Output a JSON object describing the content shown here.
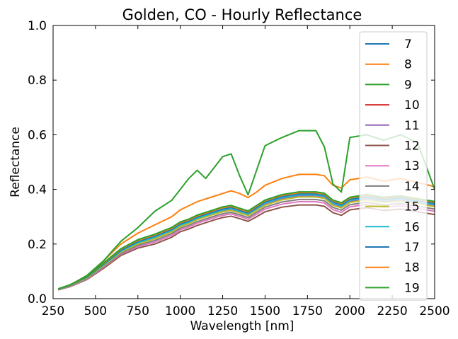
{
  "chart_data": {
    "type": "line",
    "title": "Golden, CO - Hourly Reflectance",
    "xlabel": "Wavelength [nm]",
    "ylabel": "Reflectance",
    "xlim": [
      250,
      2500
    ],
    "ylim": [
      0.0,
      1.0
    ],
    "xticks": [
      250,
      500,
      750,
      1000,
      1250,
      1500,
      1750,
      2000,
      2250,
      2500
    ],
    "yticks": [
      0.0,
      0.2,
      0.4,
      0.6,
      0.8,
      1.0
    ],
    "xtick_labels": [
      "250",
      "500",
      "750",
      "1000",
      "1250",
      "1500",
      "1750",
      "2000",
      "2250",
      "2500"
    ],
    "ytick_labels": [
      "0.0",
      "0.2",
      "0.4",
      "0.6",
      "0.8",
      "1.0"
    ],
    "grid": false,
    "legend_position": "top-right",
    "x": [
      280,
      350,
      450,
      550,
      650,
      750,
      850,
      950,
      1000,
      1050,
      1100,
      1150,
      1200,
      1250,
      1300,
      1350,
      1400,
      1450,
      1500,
      1600,
      1700,
      1800,
      1850,
      1900,
      1950,
      2000,
      2100,
      2200,
      2300,
      2400,
      2500
    ],
    "series": [
      {
        "name": "7",
        "color": "#1f77b4",
        "values": [
          0.035,
          0.05,
          0.08,
          0.13,
          0.18,
          0.215,
          0.235,
          0.26,
          0.28,
          0.29,
          0.305,
          0.315,
          0.325,
          0.335,
          0.34,
          0.33,
          0.32,
          0.34,
          0.36,
          0.38,
          0.39,
          0.39,
          0.385,
          0.36,
          0.35,
          0.37,
          0.38,
          0.37,
          0.375,
          0.365,
          0.355
        ]
      },
      {
        "name": "8",
        "color": "#ff7f0e",
        "values": [
          0.035,
          0.05,
          0.085,
          0.14,
          0.2,
          0.24,
          0.27,
          0.3,
          0.325,
          0.34,
          0.355,
          0.365,
          0.375,
          0.385,
          0.395,
          0.385,
          0.37,
          0.39,
          0.415,
          0.44,
          0.455,
          0.455,
          0.45,
          0.415,
          0.405,
          0.435,
          0.445,
          0.43,
          0.44,
          0.425,
          0.41
        ]
      },
      {
        "name": "9",
        "color": "#2ca02c",
        "values": [
          0.035,
          0.05,
          0.085,
          0.14,
          0.21,
          0.26,
          0.32,
          0.36,
          0.4,
          0.44,
          0.47,
          0.44,
          0.48,
          0.52,
          0.53,
          0.45,
          0.38,
          0.47,
          0.56,
          0.59,
          0.615,
          0.615,
          0.555,
          0.42,
          0.39,
          0.59,
          0.6,
          0.58,
          0.6,
          0.57,
          0.4
        ]
      },
      {
        "name": "10",
        "color": "#d62728",
        "values": [
          0.035,
          0.048,
          0.078,
          0.125,
          0.175,
          0.205,
          0.225,
          0.25,
          0.27,
          0.28,
          0.295,
          0.305,
          0.315,
          0.325,
          0.33,
          0.32,
          0.31,
          0.33,
          0.35,
          0.37,
          0.38,
          0.38,
          0.375,
          0.35,
          0.34,
          0.36,
          0.37,
          0.36,
          0.365,
          0.355,
          0.345
        ]
      },
      {
        "name": "11",
        "color": "#9467bd",
        "values": [
          0.034,
          0.047,
          0.076,
          0.122,
          0.17,
          0.2,
          0.22,
          0.245,
          0.265,
          0.275,
          0.29,
          0.3,
          0.31,
          0.32,
          0.325,
          0.315,
          0.305,
          0.325,
          0.345,
          0.365,
          0.375,
          0.375,
          0.37,
          0.345,
          0.335,
          0.355,
          0.365,
          0.355,
          0.36,
          0.35,
          0.34
        ]
      },
      {
        "name": "12",
        "color": "#8c564b",
        "values": [
          0.032,
          0.044,
          0.07,
          0.112,
          0.158,
          0.185,
          0.2,
          0.225,
          0.245,
          0.255,
          0.268,
          0.278,
          0.288,
          0.297,
          0.302,
          0.293,
          0.283,
          0.3,
          0.318,
          0.335,
          0.343,
          0.343,
          0.338,
          0.315,
          0.305,
          0.325,
          0.333,
          0.323,
          0.328,
          0.318,
          0.308
        ]
      },
      {
        "name": "13",
        "color": "#e377c2",
        "values": [
          0.033,
          0.045,
          0.072,
          0.116,
          0.163,
          0.19,
          0.207,
          0.232,
          0.252,
          0.262,
          0.276,
          0.286,
          0.296,
          0.305,
          0.31,
          0.301,
          0.291,
          0.309,
          0.328,
          0.346,
          0.355,
          0.355,
          0.35,
          0.326,
          0.316,
          0.336,
          0.345,
          0.335,
          0.34,
          0.33,
          0.32
        ]
      },
      {
        "name": "14",
        "color": "#7f7f7f",
        "values": [
          0.034,
          0.046,
          0.074,
          0.119,
          0.166,
          0.195,
          0.213,
          0.238,
          0.258,
          0.268,
          0.282,
          0.292,
          0.302,
          0.311,
          0.316,
          0.307,
          0.297,
          0.316,
          0.335,
          0.354,
          0.363,
          0.363,
          0.358,
          0.334,
          0.324,
          0.344,
          0.353,
          0.343,
          0.348,
          0.338,
          0.328
        ]
      },
      {
        "name": "15",
        "color": "#bcbd22",
        "values": [
          0.034,
          0.047,
          0.076,
          0.122,
          0.17,
          0.2,
          0.219,
          0.244,
          0.264,
          0.274,
          0.289,
          0.299,
          0.309,
          0.318,
          0.323,
          0.314,
          0.304,
          0.323,
          0.342,
          0.362,
          0.372,
          0.372,
          0.367,
          0.342,
          0.332,
          0.352,
          0.362,
          0.352,
          0.357,
          0.347,
          0.337
        ]
      },
      {
        "name": "16",
        "color": "#17becf",
        "values": [
          0.035,
          0.048,
          0.078,
          0.125,
          0.174,
          0.205,
          0.225,
          0.25,
          0.27,
          0.28,
          0.295,
          0.305,
          0.315,
          0.325,
          0.33,
          0.32,
          0.31,
          0.33,
          0.35,
          0.37,
          0.38,
          0.38,
          0.375,
          0.35,
          0.34,
          0.36,
          0.37,
          0.36,
          0.365,
          0.355,
          0.345
        ]
      },
      {
        "name": "17",
        "color": "#1f77b4",
        "values": [
          0.035,
          0.049,
          0.079,
          0.127,
          0.177,
          0.209,
          0.229,
          0.254,
          0.274,
          0.284,
          0.299,
          0.309,
          0.319,
          0.329,
          0.334,
          0.324,
          0.314,
          0.334,
          0.354,
          0.374,
          0.384,
          0.384,
          0.379,
          0.354,
          0.344,
          0.364,
          0.374,
          0.364,
          0.369,
          0.359,
          0.349
        ]
      },
      {
        "name": "18",
        "color": "#ff7f0e",
        "values": [
          0.036,
          0.05,
          0.081,
          0.13,
          0.181,
          0.213,
          0.233,
          0.258,
          0.278,
          0.288,
          0.303,
          0.313,
          0.323,
          0.333,
          0.338,
          0.328,
          0.318,
          0.338,
          0.358,
          0.378,
          0.388,
          0.388,
          0.383,
          0.358,
          0.348,
          0.368,
          0.378,
          0.368,
          0.373,
          0.363,
          0.353
        ]
      },
      {
        "name": "19",
        "color": "#2ca02c",
        "values": [
          0.036,
          0.051,
          0.082,
          0.132,
          0.183,
          0.216,
          0.236,
          0.261,
          0.281,
          0.291,
          0.306,
          0.316,
          0.326,
          0.336,
          0.341,
          0.331,
          0.321,
          0.341,
          0.361,
          0.381,
          0.391,
          0.391,
          0.386,
          0.361,
          0.351,
          0.371,
          0.381,
          0.371,
          0.376,
          0.366,
          0.356
        ]
      }
    ]
  }
}
